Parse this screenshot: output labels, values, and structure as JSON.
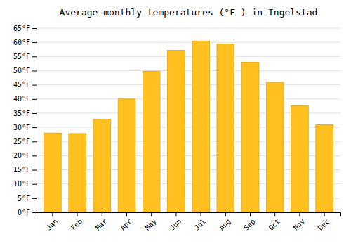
{
  "chart_data": {
    "type": "bar",
    "title": "Average monthly temperatures (°F ) in Ingelstad",
    "categories": [
      "Jan",
      "Feb",
      "Mar",
      "Apr",
      "May",
      "Jun",
      "Jul",
      "Aug",
      "Sep",
      "Oct",
      "Nov",
      "Dec"
    ],
    "values": [
      28.0,
      27.8,
      32.8,
      40.0,
      49.8,
      57.2,
      60.5,
      59.4,
      53.0,
      45.9,
      37.6,
      30.9
    ],
    "color": "#FFC020",
    "ylim": [
      0,
      65
    ],
    "yticks": [
      {
        "value": 0,
        "label": "0°F"
      },
      {
        "value": 5,
        "label": "5°F"
      },
      {
        "value": 10,
        "label": "10°F"
      },
      {
        "value": 15,
        "label": "15°F"
      },
      {
        "value": 20,
        "label": "20°F"
      },
      {
        "value": 25,
        "label": "25°F"
      },
      {
        "value": 30,
        "label": "30°F"
      },
      {
        "value": 35,
        "label": "35°F"
      },
      {
        "value": 40,
        "label": "40°F"
      },
      {
        "value": 45,
        "label": "45°F"
      },
      {
        "value": 50,
        "label": "50°F"
      },
      {
        "value": 55,
        "label": "55°F"
      },
      {
        "value": 60,
        "label": "60°F"
      },
      {
        "value": 65,
        "label": "65°F"
      }
    ],
    "grid": true
  }
}
